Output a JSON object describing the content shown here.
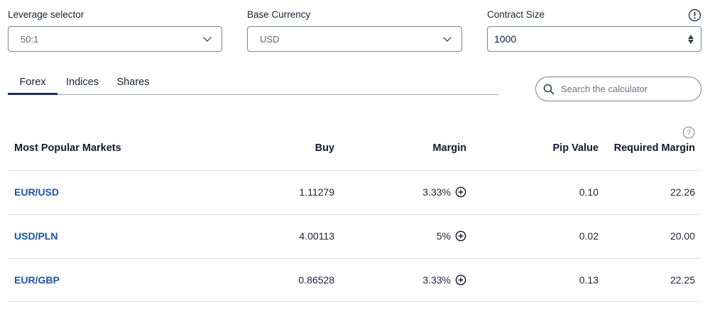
{
  "controls": {
    "leverage": {
      "label": "Leverage selector",
      "value": "50:1"
    },
    "currency": {
      "label": "Base Currency",
      "value": "USD"
    },
    "contract": {
      "label": "Contract Size",
      "value": "1000"
    }
  },
  "tabs": [
    {
      "label": "Forex",
      "active": true
    },
    {
      "label": "Indices",
      "active": false
    },
    {
      "label": "Shares",
      "active": false
    }
  ],
  "search": {
    "placeholder": "Search the calculator"
  },
  "table": {
    "headers": {
      "market": "Most Popular Markets",
      "buy": "Buy",
      "margin": "Margin",
      "pip": "Pip Value",
      "required": "Required Margin"
    },
    "rows": [
      {
        "market": "EUR/USD",
        "buy": "1.11279",
        "margin": "3.33%",
        "pip": "0.10",
        "required": "22.26"
      },
      {
        "market": "USD/PLN",
        "buy": "4.00113",
        "margin": "5%",
        "pip": "0.02",
        "required": "20.00"
      },
      {
        "market": "EUR/GBP",
        "buy": "0.86528",
        "margin": "3.33%",
        "pip": "0.13",
        "required": "22.25"
      }
    ]
  },
  "icons": {
    "info": "exclamation-circle-icon",
    "help": "question-circle-icon",
    "search": "search-icon",
    "chevron": "chevron-down-icon",
    "expand": "plus-circle-icon"
  },
  "colors": {
    "link": "#1d54a0",
    "active_tab_underline": "#1a2f5c",
    "border": "#7c8290",
    "row_divider": "#dcdfe4"
  }
}
